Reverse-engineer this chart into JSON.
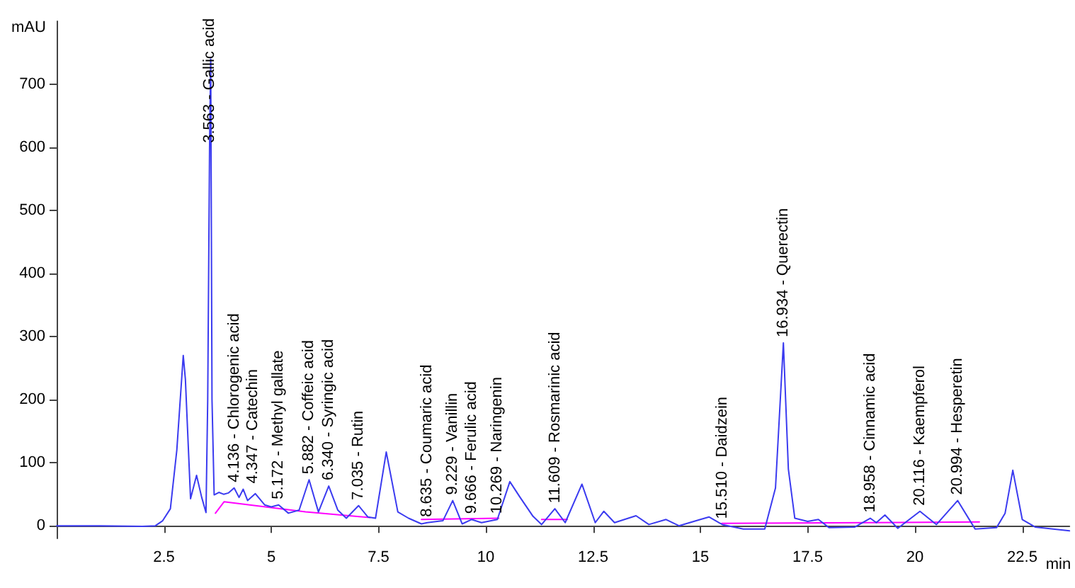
{
  "chart_data": {
    "type": "line",
    "xlabel": "min",
    "ylabel": "mAU",
    "xlim": [
      0,
      23.6
    ],
    "xticks": [
      2.5,
      5,
      7.5,
      10,
      12.5,
      15,
      17.5,
      20,
      22.5
    ],
    "ylim": [
      -20,
      800
    ],
    "yticks": [
      0,
      100,
      200,
      300,
      400,
      500,
      600,
      700
    ],
    "grid": false,
    "marker": "none",
    "line_style": "solid",
    "series": [
      {
        "color": "#3b3bf0",
        "x": [
          0,
          1,
          2,
          2.3,
          2.47,
          2.65,
          2.8,
          2.95,
          3.0,
          3.12,
          3.26,
          3.38,
          3.48,
          3.52,
          3.563,
          3.59,
          3.62,
          3.67,
          3.78,
          3.89,
          4.0,
          4.136,
          4.25,
          4.347,
          4.45,
          4.63,
          4.85,
          5.0,
          5.172,
          5.4,
          5.65,
          5.882,
          6.1,
          6.34,
          6.55,
          6.75,
          7.035,
          7.25,
          7.43,
          7.68,
          7.95,
          8.2,
          8.5,
          8.635,
          9.0,
          9.229,
          9.45,
          9.666,
          9.9,
          10.269,
          10.56,
          10.8,
          11.1,
          11.3,
          11.609,
          11.85,
          12.24,
          12.55,
          12.75,
          13.0,
          13.5,
          13.8,
          14.2,
          14.5,
          15.0,
          15.2,
          15.51,
          16.0,
          16.5,
          16.75,
          16.934,
          17.05,
          17.2,
          17.5,
          17.75,
          18.0,
          18.6,
          18.958,
          19.1,
          19.3,
          19.6,
          20.116,
          20.5,
          20.994,
          21.4,
          21.9,
          22.1,
          22.28,
          22.5,
          22.8,
          23.6
        ],
        "values": [
          0,
          0,
          -1,
          0,
          8,
          27,
          120,
          270,
          232,
          43,
          80,
          45,
          21,
          200,
          598,
          740,
          200,
          49,
          53,
          50,
          52,
          60,
          45,
          58,
          40,
          51,
          33,
          30,
          33,
          20,
          25,
          73,
          22,
          63,
          25,
          12,
          32,
          14,
          12,
          117,
          22,
          12,
          3,
          5,
          8,
          40,
          3,
          10,
          5,
          10,
          70,
          45,
          15,
          2,
          27,
          5,
          66,
          5,
          23,
          5,
          16,
          2,
          10,
          0,
          10,
          14,
          2,
          -5,
          -5,
          60,
          290,
          90,
          12,
          7,
          10,
          -3,
          -2,
          12,
          5,
          17,
          -4,
          23,
          2,
          40,
          -5,
          -3,
          20,
          88,
          10,
          -2,
          -8
        ]
      },
      {
        "color": "#ff00ff",
        "x": [
          3.7,
          3.9,
          5.8,
          7.3,
          7.31,
          8.5,
          10.3,
          10.31,
          11.3,
          11.9,
          11.91,
          15.5,
          21.5
        ],
        "values": [
          20,
          38,
          22,
          13,
          null,
          10,
          12,
          null,
          10,
          10,
          null,
          4,
          6
        ]
      }
    ],
    "annotations": [
      {
        "text": "3.563 - Gallic acid",
        "x": 3.563,
        "y": 598
      },
      {
        "text": "4.136 - Chlorogenic acid",
        "x": 4.136,
        "y": 60
      },
      {
        "text": "4.347 - Catechin",
        "x": 4.347,
        "y": 58
      },
      {
        "text": "5.172 - Methyl gallate",
        "x": 5.172,
        "y": 33
      },
      {
        "text": "5.882 - Coffeic acid",
        "x": 5.882,
        "y": 73
      },
      {
        "text": "6.340 - Syringic acid",
        "x": 6.34,
        "y": 63
      },
      {
        "text": "7.035 - Rutin",
        "x": 7.035,
        "y": 32
      },
      {
        "text": "8.635 - Coumaric acid",
        "x": 8.635,
        "y": 5
      },
      {
        "text": "9.229 - Vanillin",
        "x": 9.229,
        "y": 40
      },
      {
        "text": "9.666 - Ferulic acid",
        "x": 9.666,
        "y": 10
      },
      {
        "text": "10.269 - Naringenin",
        "x": 10.269,
        "y": 10
      },
      {
        "text": "11.609 - Rosmarinic acid",
        "x": 11.609,
        "y": 27
      },
      {
        "text": "15.510 - Daidzein",
        "x": 15.51,
        "y": 2
      },
      {
        "text": "16.934 - Querectin",
        "x": 16.934,
        "y": 290
      },
      {
        "text": "18.958 - Cinnamic acid",
        "x": 18.958,
        "y": 12
      },
      {
        "text": "20.116 - Kaempferol",
        "x": 20.116,
        "y": 23
      },
      {
        "text": "20.994 - Hesperetin",
        "x": 20.994,
        "y": 40
      }
    ]
  }
}
